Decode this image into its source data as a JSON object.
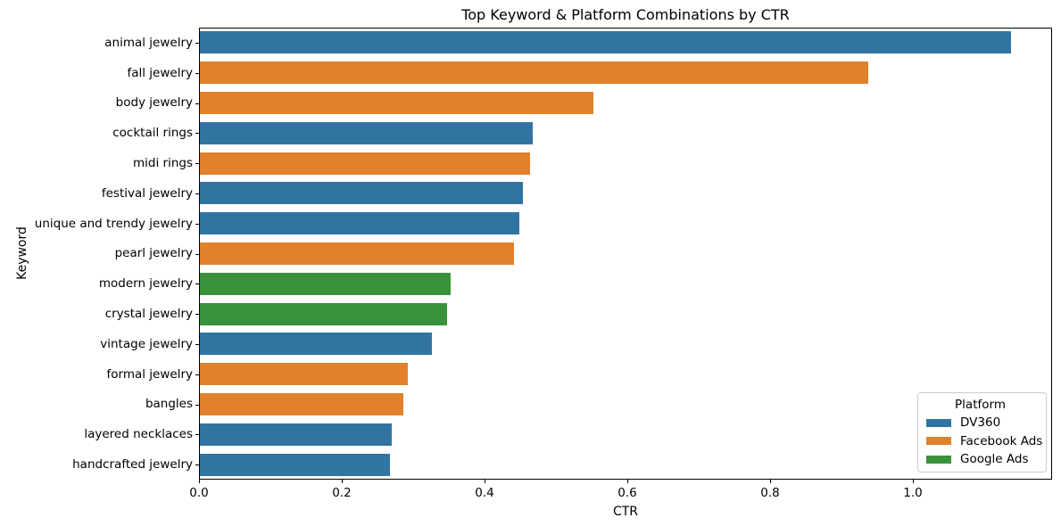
{
  "chart_data": {
    "type": "bar",
    "orientation": "horizontal",
    "title": "Top Keyword & Platform Combinations by CTR",
    "xlabel": "CTR",
    "ylabel": "Keyword",
    "xlim": [
      0,
      1.195
    ],
    "grid": false,
    "x_ticks": [
      0.0,
      0.2,
      0.4,
      0.6,
      0.8,
      1.0
    ],
    "x_tick_labels": [
      "0.0",
      "0.2",
      "0.4",
      "0.6",
      "0.8",
      "1.0"
    ],
    "categories": [
      "animal jewelry",
      "fall jewelry",
      "body jewelry",
      "cocktail rings",
      "midi rings",
      "festival jewelry",
      "unique and trendy jewelry",
      "pearl jewelry",
      "modern jewelry",
      "crystal jewelry",
      "vintage jewelry",
      "formal jewelry",
      "bangles",
      "layered necklaces",
      "handcrafted jewelry"
    ],
    "values": [
      1.138,
      0.938,
      0.553,
      0.467,
      0.464,
      0.454,
      0.449,
      0.441,
      0.353,
      0.347,
      0.326,
      0.293,
      0.286,
      0.27,
      0.268
    ],
    "platforms": [
      "DV360",
      "Facebook Ads",
      "Facebook Ads",
      "DV360",
      "Facebook Ads",
      "DV360",
      "DV360",
      "Facebook Ads",
      "Google Ads",
      "Google Ads",
      "DV360",
      "Facebook Ads",
      "Facebook Ads",
      "DV360",
      "DV360"
    ],
    "palette": {
      "DV360": "#3274a1",
      "Facebook Ads": "#e1812c",
      "Google Ads": "#3a923a"
    },
    "legend": {
      "title": "Platform",
      "position": "lower right",
      "entries": [
        {
          "label": "DV360",
          "color": "#3274a1"
        },
        {
          "label": "Facebook Ads",
          "color": "#e1812c"
        },
        {
          "label": "Google Ads",
          "color": "#3a923a"
        }
      ]
    }
  }
}
